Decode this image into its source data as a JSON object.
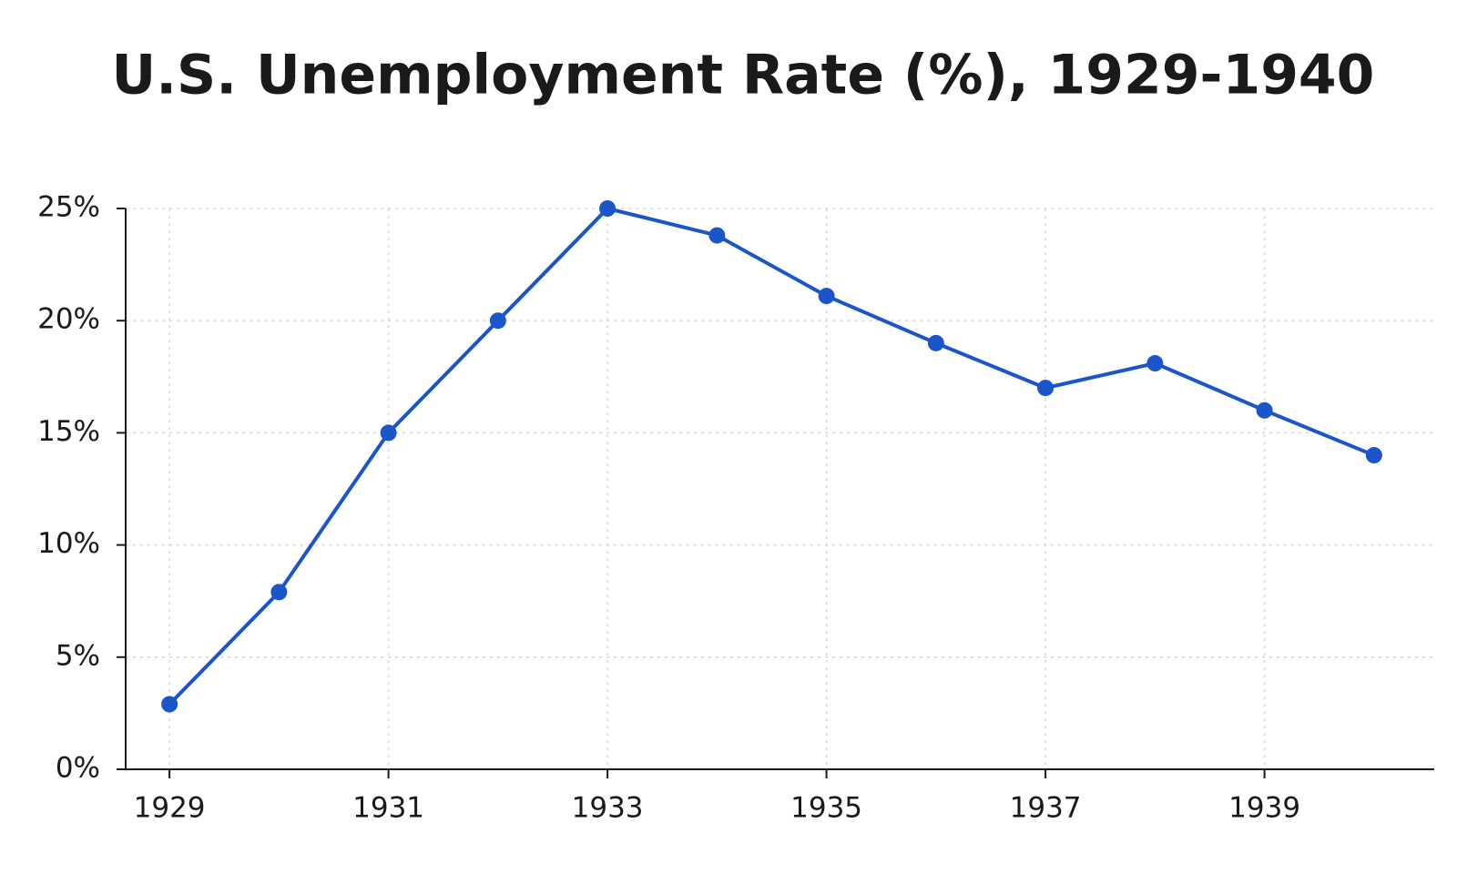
{
  "chart_data": {
    "type": "line",
    "title": "U.S. Unemployment Rate (%), 1929-1940",
    "x": [
      1929,
      1930,
      1931,
      1932,
      1933,
      1934,
      1935,
      1936,
      1937,
      1938,
      1939,
      1940
    ],
    "values": [
      2.9,
      7.9,
      15.0,
      20.0,
      25.0,
      23.8,
      21.1,
      19.0,
      17.0,
      18.1,
      16.0,
      14.0
    ],
    "color": "#1a56c9",
    "xlim": [
      1928.6,
      1940.55
    ],
    "xticks": [
      1929,
      1931,
      1933,
      1935,
      1937,
      1939
    ],
    "ylim": [
      0,
      25
    ],
    "yticks": [
      {
        "value": 0,
        "label": "0%"
      },
      {
        "value": 5,
        "label": "5%"
      },
      {
        "value": 10,
        "label": "10%"
      },
      {
        "value": 15,
        "label": "15%"
      },
      {
        "value": 20,
        "label": "20%"
      },
      {
        "value": 25,
        "label": "25%"
      }
    ],
    "grid": true
  }
}
